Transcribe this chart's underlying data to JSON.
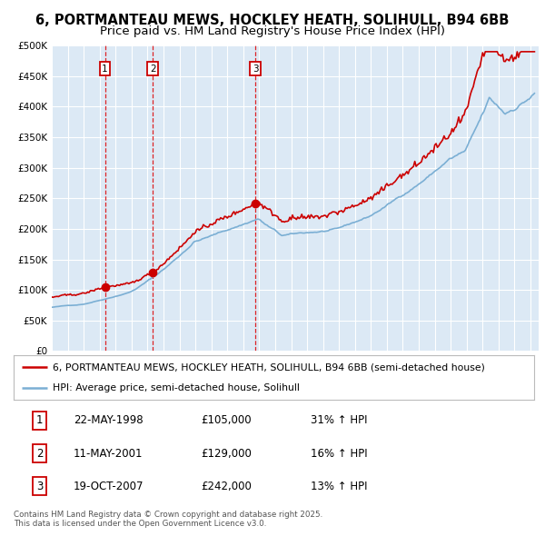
{
  "title_line1": "6, PORTMANTEAU MEWS, HOCKLEY HEATH, SOLIHULL, B94 6BB",
  "title_line2": "Price paid vs. HM Land Registry's House Price Index (HPI)",
  "property_label": "6, PORTMANTEAU MEWS, HOCKLEY HEATH, SOLIHULL, B94 6BB (semi-detached house)",
  "hpi_label": "HPI: Average price, semi-detached house, Solihull",
  "property_color": "#cc0000",
  "hpi_color": "#7bafd4",
  "background_color": "#dce9f5",
  "grid_color": "#ffffff",
  "sale_vline_color": "#dd0000",
  "sale_marker_color": "#cc0000",
  "ylim": [
    0,
    500000
  ],
  "ytick_step": 50000,
  "footer_text": "Contains HM Land Registry data © Crown copyright and database right 2025.\nThis data is licensed under the Open Government Licence v3.0.",
  "title_fontsize": 10.5,
  "subtitle_fontsize": 9.5,
  "tick_fontsize": 7.5,
  "legend_fontsize": 8,
  "table_fontsize": 8.5
}
